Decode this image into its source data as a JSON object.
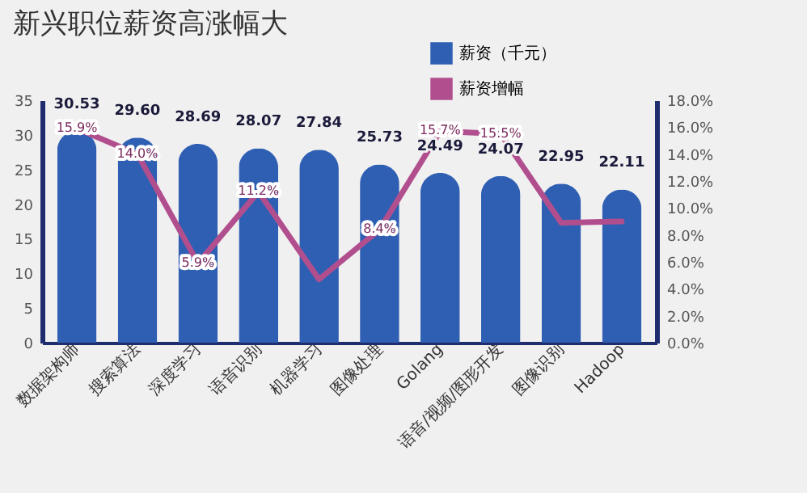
{
  "chart_data": {
    "type": "bar",
    "title": "新兴职位薪资高涨幅大",
    "categories": [
      "数据架构师",
      "搜索算法",
      "深度学习",
      "语音识别",
      "机器学习",
      "图像处理",
      "Golang",
      "语音/视频/图形开发",
      "图像识别",
      "Hadoop"
    ],
    "series": [
      {
        "name": "薪资（千元）",
        "color": "#2f5fb3",
        "values": [
          30.53,
          29.6,
          28.69,
          28.07,
          27.84,
          25.73,
          24.49,
          24.07,
          22.95,
          22.11
        ],
        "value_labels": [
          "30.53",
          "29.60",
          "28.69",
          "28.07",
          "27.84",
          "25.73",
          "24.49",
          "24.07",
          "22.95",
          "22.11"
        ]
      },
      {
        "name": "薪资增幅",
        "type": "line",
        "axis": "y2",
        "color": "#b14f8e",
        "values": [
          15.9,
          14.0,
          5.9,
          11.2,
          4.7,
          8.4,
          15.7,
          15.5,
          8.9,
          9.0
        ],
        "value_labels": [
          "15.9%",
          "14.0%",
          "5.9%",
          "11.2%",
          null,
          "8.4%",
          "15.7%",
          "15.5%",
          null,
          null
        ]
      }
    ],
    "ylim": [
      0,
      35
    ],
    "yticks": [
      0,
      5,
      10,
      15,
      20,
      25,
      30,
      35
    ],
    "y2lim": [
      0,
      18
    ],
    "y2ticks": [
      {
        "value": 0,
        "label": "0.0%"
      },
      {
        "value": 2,
        "label": "2.0%"
      },
      {
        "value": 4,
        "label": "4.0%"
      },
      {
        "value": 6,
        "label": "6.0%"
      },
      {
        "value": 8,
        "label": "8.0%"
      },
      {
        "value": 10,
        "label": "10.0%"
      },
      {
        "value": 12,
        "label": "12.0%"
      },
      {
        "value": 14,
        "label": "14.0%"
      },
      {
        "value": 16,
        "label": "16.0%"
      },
      {
        "value": 18,
        "label": "18.0%"
      }
    ],
    "grid": false,
    "legend": "top right"
  }
}
